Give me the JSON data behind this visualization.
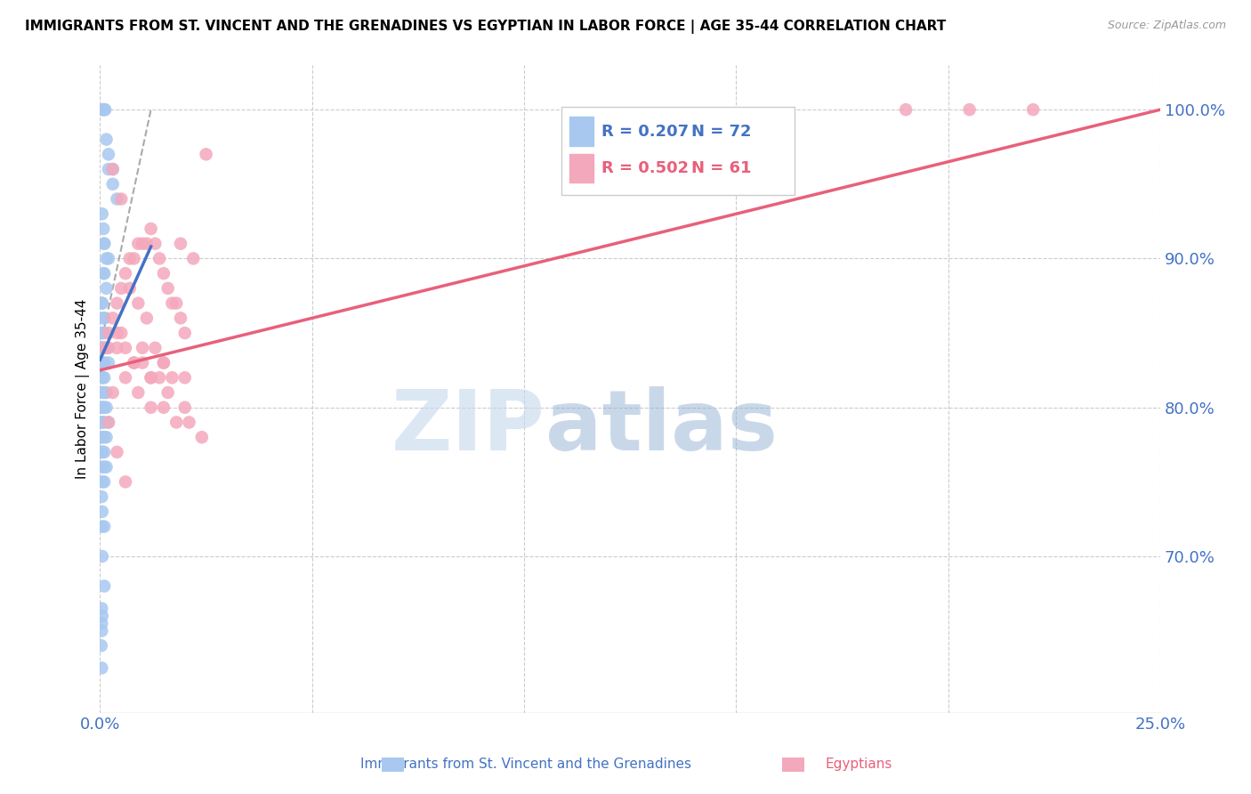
{
  "title": "IMMIGRANTS FROM ST. VINCENT AND THE GRENADINES VS EGYPTIAN IN LABOR FORCE | AGE 35-44 CORRELATION CHART",
  "source": "Source: ZipAtlas.com",
  "ylabel": "In Labor Force | Age 35-44",
  "xlim": [
    0.0,
    0.25
  ],
  "ylim": [
    0.595,
    1.03
  ],
  "yticks": [
    0.7,
    0.8,
    0.9,
    1.0
  ],
  "ytick_labels": [
    "70.0%",
    "80.0%",
    "90.0%",
    "100.0%"
  ],
  "xtick_left": "0.0%",
  "xtick_right": "25.0%",
  "legend_r1": "R = 0.207",
  "legend_n1": "N = 72",
  "legend_r2": "R = 0.502",
  "legend_n2": "N = 61",
  "label_blue": "Immigrants from St. Vincent and the Grenadines",
  "label_pink": "Egyptians",
  "color_blue": "#A8C8F0",
  "color_pink": "#F4A8BC",
  "color_blue_dark": "#4472C4",
  "color_pink_dark": "#E8607A",
  "color_axis_labels": "#4472C4",
  "watermark_zip": "ZIP",
  "watermark_atlas": "atlas",
  "background_color": "#FFFFFF",
  "grid_color": "#CCCCCC",
  "blue_scatter_x": [
    0.0005,
    0.0008,
    0.001,
    0.0012,
    0.0015,
    0.002,
    0.002,
    0.003,
    0.003,
    0.004,
    0.0005,
    0.0008,
    0.001,
    0.001,
    0.0015,
    0.002,
    0.0008,
    0.001,
    0.0015,
    0.0005,
    0.0005,
    0.0008,
    0.001,
    0.001,
    0.0005,
    0.0006,
    0.0007,
    0.001,
    0.0015,
    0.002,
    0.0005,
    0.0006,
    0.001,
    0.001,
    0.0005,
    0.0006,
    0.001,
    0.0015,
    0.0005,
    0.0006,
    0.0004,
    0.001,
    0.0015,
    0.002,
    0.0004,
    0.0005,
    0.001,
    0.0005,
    0.0015,
    0.001,
    0.0004,
    0.0005,
    0.0005,
    0.001,
    0.0005,
    0.001,
    0.0004,
    0.0015,
    0.001,
    0.0005,
    0.0004,
    0.0005,
    0.001,
    0.0004,
    0.0005,
    0.001,
    0.0004,
    0.0005,
    0.0004,
    0.0004,
    0.0003,
    0.0004
  ],
  "blue_scatter_y": [
    1.0,
    1.0,
    1.0,
    1.0,
    0.98,
    0.97,
    0.96,
    0.96,
    0.95,
    0.94,
    0.93,
    0.92,
    0.91,
    0.91,
    0.9,
    0.9,
    0.89,
    0.89,
    0.88,
    0.87,
    0.87,
    0.86,
    0.86,
    0.85,
    0.85,
    0.85,
    0.84,
    0.84,
    0.84,
    0.83,
    0.83,
    0.83,
    0.83,
    0.82,
    0.82,
    0.82,
    0.81,
    0.81,
    0.81,
    0.8,
    0.8,
    0.8,
    0.8,
    0.79,
    0.79,
    0.79,
    0.79,
    0.78,
    0.78,
    0.78,
    0.78,
    0.77,
    0.77,
    0.77,
    0.77,
    0.76,
    0.76,
    0.76,
    0.75,
    0.75,
    0.74,
    0.73,
    0.72,
    0.72,
    0.7,
    0.68,
    0.665,
    0.66,
    0.655,
    0.65,
    0.64,
    0.625
  ],
  "pink_scatter_x": [
    0.001,
    0.002,
    0.003,
    0.004,
    0.005,
    0.006,
    0.007,
    0.008,
    0.009,
    0.01,
    0.011,
    0.012,
    0.013,
    0.014,
    0.015,
    0.016,
    0.017,
    0.018,
    0.019,
    0.02,
    0.002,
    0.004,
    0.006,
    0.008,
    0.01,
    0.012,
    0.014,
    0.003,
    0.005,
    0.007,
    0.009,
    0.011,
    0.013,
    0.015,
    0.017,
    0.003,
    0.006,
    0.009,
    0.012,
    0.015,
    0.018,
    0.021,
    0.024,
    0.004,
    0.008,
    0.012,
    0.016,
    0.02,
    0.005,
    0.01,
    0.015,
    0.02,
    0.025,
    0.002,
    0.004,
    0.006,
    0.019,
    0.022,
    0.19,
    0.205,
    0.22
  ],
  "pink_scatter_y": [
    0.84,
    0.85,
    0.86,
    0.87,
    0.88,
    0.89,
    0.9,
    0.9,
    0.91,
    0.91,
    0.91,
    0.92,
    0.91,
    0.9,
    0.89,
    0.88,
    0.87,
    0.87,
    0.86,
    0.85,
    0.84,
    0.85,
    0.84,
    0.83,
    0.83,
    0.82,
    0.82,
    0.96,
    0.94,
    0.88,
    0.87,
    0.86,
    0.84,
    0.83,
    0.82,
    0.81,
    0.82,
    0.81,
    0.8,
    0.8,
    0.79,
    0.79,
    0.78,
    0.84,
    0.83,
    0.82,
    0.81,
    0.8,
    0.85,
    0.84,
    0.83,
    0.82,
    0.97,
    0.79,
    0.77,
    0.75,
    0.91,
    0.9,
    1.0,
    1.0,
    1.0
  ],
  "blue_trend_x": [
    0.0,
    0.012
  ],
  "blue_trend_y": [
    0.832,
    0.908
  ],
  "pink_trend_x": [
    0.0,
    0.25
  ],
  "pink_trend_y": [
    0.825,
    1.0
  ],
  "diag_trend_x": [
    0.0,
    0.012
  ],
  "diag_trend_y": [
    0.84,
    1.0
  ]
}
